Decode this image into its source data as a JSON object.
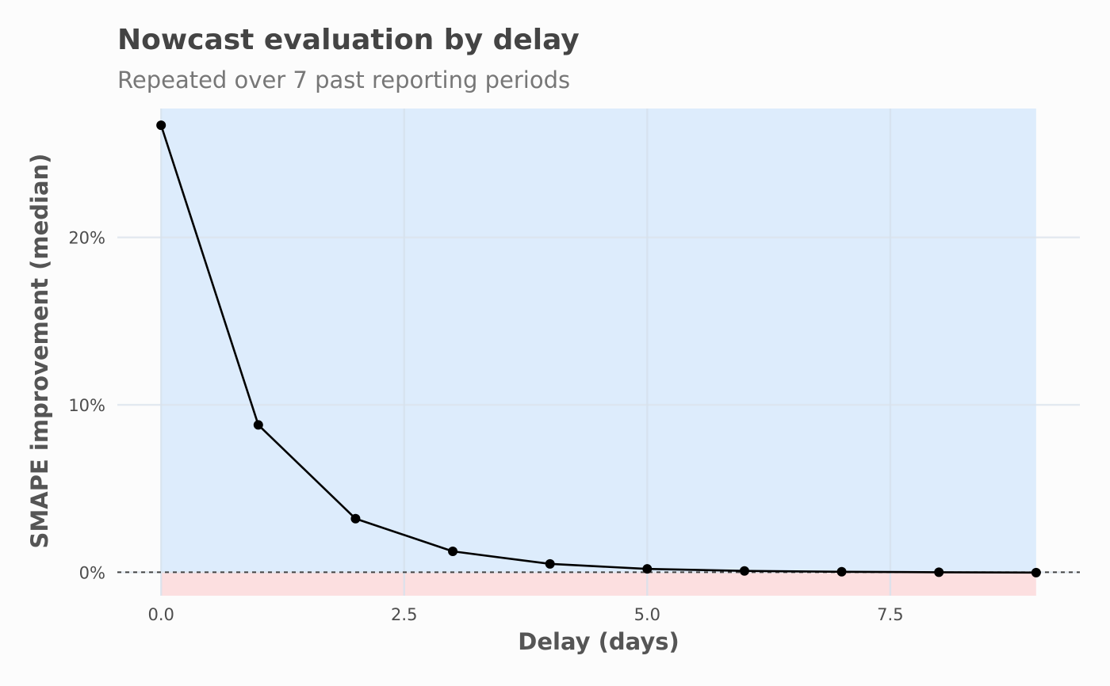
{
  "chart_data": {
    "type": "line",
    "title": "Nowcast evaluation by delay",
    "subtitle": "Repeated over 7 past reporting periods",
    "xlabel": "Delay (days)",
    "ylabel": "SMAPE improvement (median)",
    "x": [
      0,
      1,
      2,
      3,
      4,
      5,
      6,
      7,
      8,
      9
    ],
    "series": [
      {
        "values": [
          26.7,
          8.8,
          3.2,
          1.25,
          0.5,
          0.2,
          0.08,
          0.03,
          0.0,
          -0.02
        ]
      }
    ],
    "xlim": [
      -0.45,
      9.45
    ],
    "ylim": [
      -1.4,
      27.7
    ],
    "xticks": [
      {
        "value": 0.0,
        "label": "0.0"
      },
      {
        "value": 2.5,
        "label": "2.5"
      },
      {
        "value": 5.0,
        "label": "5.0"
      },
      {
        "value": 7.5,
        "label": "7.5"
      }
    ],
    "yticks": [
      {
        "value": 0,
        "label": "0%"
      },
      {
        "value": 10,
        "label": "10%"
      },
      {
        "value": 20,
        "label": "20%"
      }
    ],
    "reference_line": {
      "y": 0,
      "style": "dashed"
    },
    "shaded_regions": [
      {
        "name": "improvement",
        "from": 0,
        "to": "max",
        "color": "#ddecfc"
      },
      {
        "name": "worsening",
        "from": "min",
        "to": 0,
        "color": "#fcdfe0"
      }
    ],
    "grid": true,
    "legend": "none",
    "line_color": "#000000"
  }
}
